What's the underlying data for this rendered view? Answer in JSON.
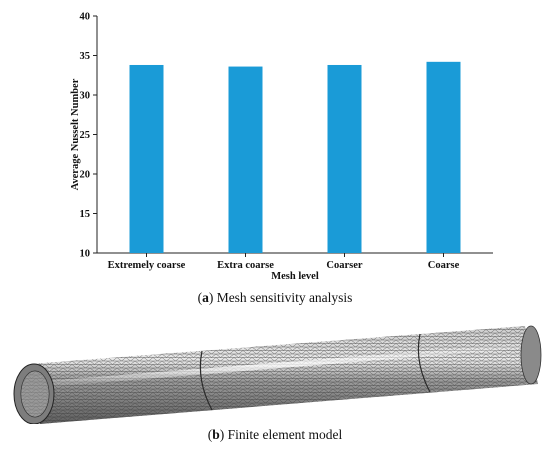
{
  "chart_data": {
    "type": "bar",
    "categories": [
      "Extremely coarse",
      "Extra coarse",
      "Coarser",
      "Coarse"
    ],
    "values": [
      33.8,
      33.6,
      33.8,
      34.2
    ],
    "xlabel": "Mesh level",
    "ylabel": "Average Nusselt Number",
    "ylim": [
      10,
      40
    ],
    "yticks": [
      10,
      15,
      20,
      25,
      30,
      35,
      40
    ],
    "bar_color": "#1a9bd7",
    "grid": false
  },
  "captions": {
    "a": {
      "letter": "a",
      "text": " Mesh sensitivity analysis"
    },
    "b": {
      "letter": "b",
      "text": " Finite element model"
    }
  },
  "mesh_model": {
    "segments": 3,
    "fill_color": "#9a9a9a",
    "line_color": "#3a3a3a"
  }
}
